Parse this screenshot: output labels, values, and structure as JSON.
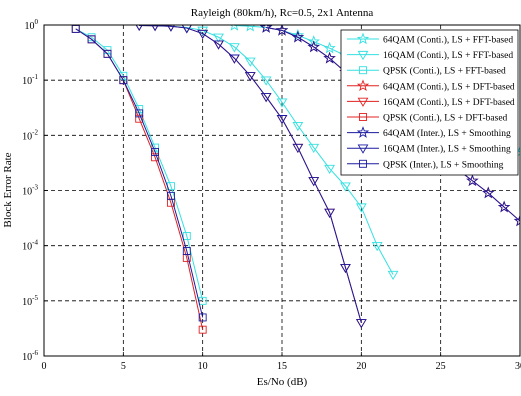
{
  "chart_data": {
    "type": "line",
    "title": "Rayleigh (80km/h), Rc=0.5, 2x1 Antenna",
    "xlabel": "Es/No (dB)",
    "ylabel": "Block Error Rate",
    "xlim": [
      0,
      30
    ],
    "ylim": [
      1e-06,
      1
    ],
    "yscale": "log",
    "grid": true,
    "legend_position": "top-right",
    "xticks": [
      "0",
      "5",
      "10",
      "15",
      "20",
      "25",
      "30"
    ],
    "yticks": [
      {
        "base": "10",
        "exp": "0"
      },
      {
        "base": "10",
        "exp": "-1"
      },
      {
        "base": "10",
        "exp": "-2"
      },
      {
        "base": "10",
        "exp": "-3"
      },
      {
        "base": "10",
        "exp": "-4"
      },
      {
        "base": "10",
        "exp": "-5"
      },
      {
        "base": "10",
        "exp": "-6"
      }
    ],
    "colors": {
      "cyan": "#33e0e0",
      "red": "#e02020",
      "blue": "#1a1aa0"
    },
    "series": [
      {
        "name": "64QAM (Conti.), LS + FFT-based",
        "color": "#33e0e0",
        "marker": "star",
        "x": [
          12,
          13,
          14,
          15,
          16,
          17,
          18,
          19,
          20,
          21,
          22,
          23,
          24,
          25,
          26,
          27,
          28,
          29,
          30
        ],
        "y": [
          0.98,
          0.95,
          0.9,
          0.8,
          0.65,
          0.5,
          0.38,
          0.28,
          0.2,
          0.15,
          0.11,
          0.08,
          0.06,
          0.045,
          0.025,
          0.015,
          0.01,
          0.007,
          0.005
        ]
      },
      {
        "name": "16QAM (Conti.), LS + FFT-based",
        "color": "#33e0e0",
        "marker": "triangle-down",
        "x": [
          6,
          7,
          8,
          9,
          10,
          11,
          12,
          13,
          14,
          15,
          16,
          17,
          18,
          19,
          20,
          21,
          22
        ],
        "y": [
          0.98,
          0.97,
          0.95,
          0.9,
          0.8,
          0.6,
          0.4,
          0.22,
          0.1,
          0.04,
          0.015,
          0.006,
          0.0025,
          0.0012,
          0.0005,
          0.0001,
          3e-05
        ]
      },
      {
        "name": "QPSK (Conti.), LS + FFT-based",
        "color": "#33e0e0",
        "marker": "square",
        "x": [
          2,
          3,
          4,
          5,
          6,
          7,
          8,
          9,
          10
        ],
        "y": [
          0.85,
          0.6,
          0.35,
          0.12,
          0.03,
          0.006,
          0.0012,
          0.00015,
          1e-05
        ]
      },
      {
        "name": "64QAM (Conti.), LS + DFT-based",
        "color": "#e02020",
        "marker": "star",
        "x": [
          14,
          15,
          16,
          17,
          18,
          19,
          20,
          21,
          22,
          23,
          24,
          25,
          26,
          27,
          28,
          29,
          30
        ],
        "y": [
          0.9,
          0.8,
          0.6,
          0.4,
          0.25,
          0.14,
          0.08,
          0.045,
          0.025,
          0.012,
          0.006,
          0.004,
          0.0025,
          0.0015,
          0.0009,
          0.0005,
          0.00028
        ]
      },
      {
        "name": "16QAM (Conti.), LS + DFT-based",
        "color": "#e02020",
        "marker": "triangle-down",
        "x": [
          6,
          7,
          8,
          9,
          10,
          11,
          12,
          13,
          14,
          15,
          16,
          17,
          18,
          19,
          20
        ],
        "y": [
          0.98,
          0.97,
          0.95,
          0.88,
          0.7,
          0.45,
          0.25,
          0.12,
          0.05,
          0.02,
          0.006,
          0.0015,
          0.0004,
          4e-05,
          4e-06
        ]
      },
      {
        "name": "QPSK (Conti.), LS + DFT-based",
        "color": "#e02020",
        "marker": "square",
        "x": [
          2,
          3,
          4,
          5,
          6,
          7,
          8,
          9,
          10
        ],
        "y": [
          0.85,
          0.55,
          0.3,
          0.1,
          0.02,
          0.004,
          0.0006,
          6e-05,
          3e-06
        ]
      },
      {
        "name": "64QAM (Inter.), LS + Smoothing",
        "color": "#1a1aa0",
        "marker": "star",
        "x": [
          14,
          15,
          16,
          17,
          18,
          19,
          20,
          21,
          22,
          23,
          24,
          25,
          26,
          27,
          28,
          29,
          30
        ],
        "y": [
          0.9,
          0.8,
          0.6,
          0.4,
          0.25,
          0.14,
          0.08,
          0.045,
          0.025,
          0.012,
          0.006,
          0.004,
          0.0025,
          0.0015,
          0.0009,
          0.0005,
          0.00028
        ]
      },
      {
        "name": "16QAM (Inter.), LS + Smoothing",
        "color": "#1a1aa0",
        "marker": "triangle-down",
        "x": [
          6,
          7,
          8,
          9,
          10,
          11,
          12,
          13,
          14,
          15,
          16,
          17,
          18,
          19,
          20
        ],
        "y": [
          0.98,
          0.97,
          0.95,
          0.88,
          0.7,
          0.45,
          0.25,
          0.12,
          0.05,
          0.02,
          0.006,
          0.0015,
          0.0004,
          4e-05,
          4e-06
        ]
      },
      {
        "name": "QPSK (Inter.), LS + Smoothing",
        "color": "#1a1aa0",
        "marker": "square",
        "x": [
          2,
          3,
          4,
          5,
          6,
          7,
          8,
          9,
          10
        ],
        "y": [
          0.85,
          0.55,
          0.3,
          0.1,
          0.025,
          0.005,
          0.0008,
          8e-05,
          5e-06
        ]
      }
    ]
  }
}
